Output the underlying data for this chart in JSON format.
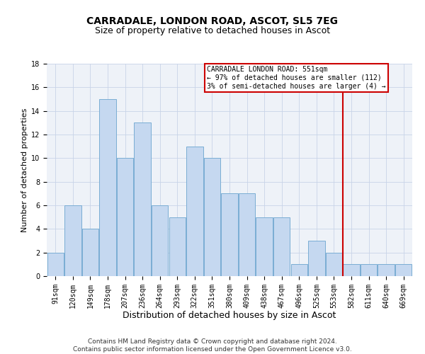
{
  "title": "CARRADALE, LONDON ROAD, ASCOT, SL5 7EG",
  "subtitle": "Size of property relative to detached houses in Ascot",
  "xlabel": "Distribution of detached houses by size in Ascot",
  "ylabel": "Number of detached properties",
  "categories": [
    "91sqm",
    "120sqm",
    "149sqm",
    "178sqm",
    "207sqm",
    "236sqm",
    "264sqm",
    "293sqm",
    "322sqm",
    "351sqm",
    "380sqm",
    "409sqm",
    "438sqm",
    "467sqm",
    "496sqm",
    "525sqm",
    "553sqm",
    "582sqm",
    "611sqm",
    "640sqm",
    "669sqm"
  ],
  "values": [
    2,
    6,
    4,
    15,
    10,
    13,
    6,
    5,
    11,
    10,
    7,
    7,
    5,
    5,
    1,
    3,
    2,
    1,
    1,
    1,
    1
  ],
  "bar_color": "#c5d8f0",
  "bar_edgecolor": "#7aadd4",
  "bar_linewidth": 0.7,
  "vline_index": 16.5,
  "vline_color": "#cc0000",
  "annotation_line1": "CARRADALE LONDON ROAD: 551sqm",
  "annotation_line2": "← 97% of detached houses are smaller (112)",
  "annotation_line3": "3% of semi-detached houses are larger (4) →",
  "annotation_box_color": "#cc0000",
  "ylim": [
    0,
    18
  ],
  "yticks": [
    0,
    2,
    4,
    6,
    8,
    10,
    12,
    14,
    16,
    18
  ],
  "grid_color": "#c8d4e8",
  "background_color": "#eef2f8",
  "footer_line1": "Contains HM Land Registry data © Crown copyright and database right 2024.",
  "footer_line2": "Contains public sector information licensed under the Open Government Licence v3.0.",
  "title_fontsize": 10,
  "subtitle_fontsize": 9,
  "xlabel_fontsize": 9,
  "ylabel_fontsize": 8,
  "tick_fontsize": 7,
  "annot_fontsize": 7,
  "footer_fontsize": 6.5
}
